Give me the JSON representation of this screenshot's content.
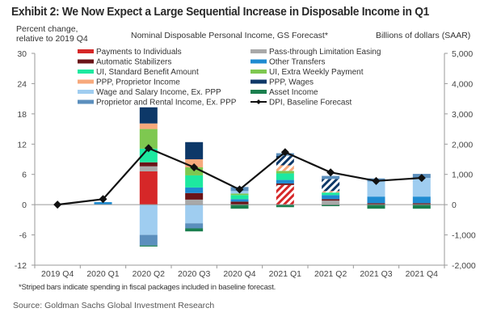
{
  "title": "Exhibit 2: We Now Expect a Large Sequential Increase in Disposable Income in Q1",
  "left_axis_title": "Percent change, relative to 2019 Q4",
  "center_title": "Nominal Disposable Personal Income, GS Forecast*",
  "right_axis_title": "Billions of dollars (SAAR)",
  "footnote": "*Striped bars indicate spending in fiscal packages included in baseline forecast.",
  "source": "Source: Goldman Sachs Global Investment Research",
  "chart_data": {
    "type": "bar",
    "stacked": true,
    "title": "Nominal Disposable Personal Income, GS Forecast*",
    "ylabel": "Percent change, relative to 2019 Q4",
    "y2label": "Billions of dollars (SAAR)",
    "ylim": [
      -12,
      30
    ],
    "yticks": [
      30,
      24,
      18,
      12,
      6,
      0,
      -6,
      -12
    ],
    "y2lim": [
      -2000,
      5000
    ],
    "y2ticks": [
      "5,000",
      "4,000",
      "3,000",
      "2,000",
      "1,000",
      "0",
      "-1,000",
      "-2,000"
    ],
    "grid": false,
    "legend_position": "top",
    "categories": [
      "2019 Q4",
      "2020 Q1",
      "2020 Q2",
      "2020 Q3",
      "2020 Q4",
      "2021 Q1",
      "2021 Q2",
      "2021 Q3",
      "2021 Q4"
    ],
    "series": [
      {
        "name": "Payments to Individuals",
        "color": "#d62728",
        "values": [
          0,
          0,
          6.6,
          0,
          0,
          3.9,
          0,
          0,
          0
        ],
        "striped": [
          false,
          false,
          false,
          false,
          false,
          true,
          false,
          false,
          false
        ]
      },
      {
        "name": "Pass-through Limitation Easing",
        "color": "#a9a9a9",
        "values": [
          0,
          0,
          1.0,
          1.0,
          0,
          0,
          0.8,
          0,
          0
        ],
        "striped": [
          false,
          false,
          false,
          false,
          false,
          false,
          false,
          false,
          false
        ]
      },
      {
        "name": "Automatic Stabilizers",
        "color": "#6b1418",
        "values": [
          0,
          0,
          0.8,
          1.3,
          0.6,
          0.3,
          0.3,
          0.3,
          0.3
        ],
        "striped": [
          false,
          false,
          false,
          false,
          false,
          false,
          false,
          false,
          false
        ]
      },
      {
        "name": "Other Transfers",
        "color": "#1f8bd1",
        "values": [
          0,
          0.5,
          0,
          1.1,
          0.5,
          0.7,
          0.8,
          1.3,
          1.3
        ],
        "striped": [
          false,
          false,
          false,
          false,
          false,
          false,
          false,
          false,
          false
        ]
      },
      {
        "name": "UI, Standard Benefit Amount",
        "color": "#1de9a0",
        "values": [
          0,
          0,
          2.7,
          2.4,
          0.8,
          1.3,
          0.5,
          0,
          0
        ],
        "striped": [
          false,
          false,
          false,
          false,
          false,
          false,
          false,
          false,
          false
        ]
      },
      {
        "name": "UI, Extra Weekly Payment",
        "color": "#7ec850",
        "values": [
          0,
          0,
          3.9,
          1.6,
          0.3,
          0.5,
          0,
          0,
          0
        ],
        "striped": [
          false,
          false,
          false,
          false,
          false,
          false,
          false,
          false,
          false
        ]
      },
      {
        "name": "PPP, Proprietor Income",
        "color": "#f7a97c",
        "values": [
          0,
          0,
          1.1,
          1.6,
          0,
          1.1,
          0.3,
          0,
          0
        ],
        "striped": [
          false,
          false,
          false,
          false,
          false,
          true,
          true,
          false,
          false
        ]
      },
      {
        "name": "PPP, Wages",
        "color": "#0d3868",
        "values": [
          0,
          0,
          3.2,
          3.4,
          0,
          1.9,
          2.4,
          0,
          0
        ],
        "striped": [
          false,
          false,
          false,
          false,
          false,
          true,
          true,
          false,
          false
        ]
      },
      {
        "name": "Wage and Salary Income, Ex. PPP",
        "color": "#9fcdf0",
        "values": [
          0,
          0,
          -6.0,
          -3.7,
          0.5,
          0,
          0,
          3.0,
          3.7
        ],
        "striped": [
          false,
          false,
          false,
          false,
          false,
          false,
          false,
          false,
          false
        ]
      },
      {
        "name": "Proprietor and Rental Income, Ex. PPP",
        "color": "#5b8fbd",
        "values": [
          0,
          0,
          -2.1,
          -1.0,
          0.8,
          0.5,
          0.6,
          0.6,
          0.8
        ],
        "striped": [
          false,
          false,
          false,
          false,
          false,
          false,
          false,
          false,
          false
        ]
      },
      {
        "name": "Asset Income",
        "color": "#1a7f4e",
        "values": [
          0,
          0,
          -0.2,
          -0.6,
          -0.8,
          -0.5,
          -0.3,
          -0.8,
          -0.8
        ],
        "striped": [
          false,
          false,
          false,
          false,
          false,
          false,
          false,
          false,
          false
        ]
      }
    ],
    "line_series": {
      "name": "DPI, Baseline Forecast",
      "color": "#111111",
      "values": [
        0,
        1.1,
        11.2,
        7.4,
        3.0,
        10.4,
        6.4,
        4.7,
        5.3
      ]
    }
  }
}
